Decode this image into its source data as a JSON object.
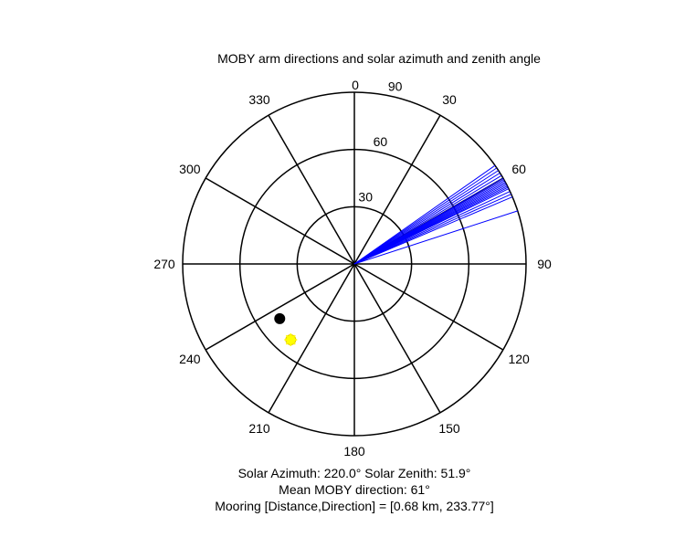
{
  "chart_data": {
    "type": "polar",
    "title": "MOBY arm directions and solar azimuth and zenith angle",
    "angle_ticks": [
      "0",
      "30",
      "60",
      "90",
      "120",
      "150",
      "180",
      "210",
      "240",
      "270",
      "300",
      "330"
    ],
    "radial_ticks": [
      "30",
      "60",
      "90"
    ],
    "radial_range": [
      0,
      90
    ],
    "angular_zero": "top",
    "angular_direction": "clockwise",
    "grid": true,
    "arm_directions": {
      "color": "#0000ff",
      "length": 90,
      "azimuths_deg": [
        55,
        56,
        57,
        58,
        59,
        60,
        60.5,
        61,
        61.5,
        62,
        62.5,
        63,
        63.5,
        64,
        65,
        66,
        67,
        72
      ]
    },
    "markers": [
      {
        "label": "mooring",
        "azimuth_deg": 233.77,
        "zenith_deg": 48.5,
        "color": "#000000",
        "style": "filled-circle"
      },
      {
        "label": "sun",
        "azimuth_deg": 220.0,
        "zenith_deg": 51.9,
        "color": "#ffff00",
        "style": "star"
      }
    ],
    "solar_azimuth": 220.0,
    "solar_zenith": 51.9,
    "mean_moby_direction": 61,
    "mooring_distance_km": 0.68,
    "mooring_direction_deg": 233.77
  },
  "captions": {
    "line1": "Solar Azimuth: 220.0°   Solar Zenith: 51.9°",
    "line2": "Mean MOBY direction: 61°",
    "line3": "Mooring [Distance,Direction] = [0.68 km, 233.77°]"
  }
}
